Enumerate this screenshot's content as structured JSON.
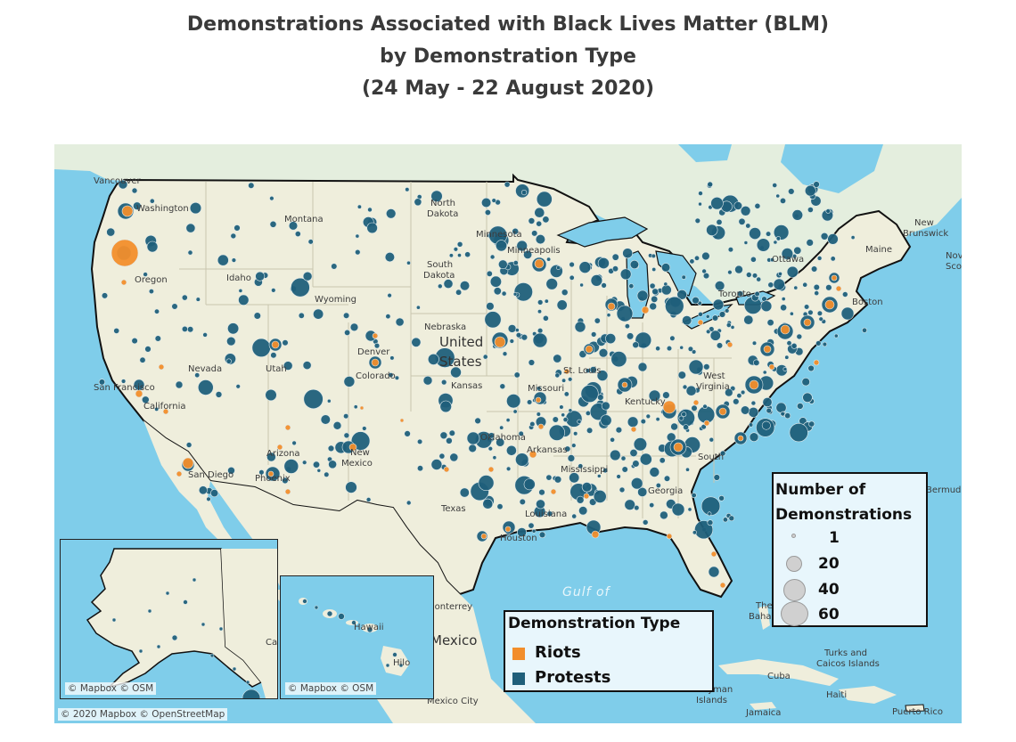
{
  "title": {
    "line1": "Demonstrations Associated with Black Lives Matter (BLM)",
    "line2": "by Demonstration Type",
    "line3": "(24 May - 22 August 2020)"
  },
  "colors": {
    "riots": "#f28e2b",
    "protests": "#1f5f7a",
    "water": "#7fcdea",
    "land": "#efeedc"
  },
  "map": {
    "attribution": "© 2020 Mapbox © OpenStreetMap",
    "inset_alaska_attribution": "© Mapbox © OSM",
    "inset_hawaii_attribution": "© Mapbox © OSM",
    "labels": {
      "vancouver": "Vancouver",
      "washington": "Washington",
      "montana": "Montana",
      "north_dakota_1": "North",
      "north_dakota_2": "Dakota",
      "minnesota": "Minnesota",
      "minneapolis": "Minneapolis",
      "south_dakota_1": "South",
      "south_dakota_2": "Dakota",
      "oregon": "Oregon",
      "idaho": "Idaho",
      "wyoming": "Wyoming",
      "nebraska": "Nebraska",
      "united_states_1": "United",
      "united_states_2": "States",
      "nevada": "Nevada",
      "utah": "Utah",
      "denver": "Denver",
      "colorado": "Colorado",
      "kansas": "Kansas",
      "st_louis": "St. Louis",
      "missouri": "Missouri",
      "san_francisco": "San Francisco",
      "california": "California",
      "arizona": "Arizona",
      "new_mexico_1": "New",
      "new_mexico_2": "Mexico",
      "phoenix": "Phoenix",
      "san_diego": "San Diego",
      "oklahoma": "Oklahoma",
      "arkansas": "Arkansas",
      "mississippi": "Mississippi",
      "texas": "Texas",
      "houston": "Houston",
      "west_virginia_1": "West",
      "west_virginia_2": "Virginia",
      "kentucky": "Kentucky",
      "south_carolina": "South",
      "georgia": "Georgia",
      "louisiana": "Louisiana",
      "toronto": "Toronto",
      "ottawa": "Ottawa",
      "maine": "Maine",
      "new_brunswick_1": "New",
      "new_brunswick_2": "Brunswick",
      "nova_scotia_1": "Nov",
      "nova_scotia_2": "Sco",
      "boston": "Boston",
      "bermuda": "Bermuda",
      "gulf_of": "Gulf of",
      "monterrey": "Monterrey",
      "mexico": "Mexico",
      "mexico_city": "Mexico City",
      "the_bahamas_1": "The",
      "the_bahamas_2": "Bahamas",
      "cuba": "Cuba",
      "turks_1": "Turks and",
      "turks_2": "Caicos Islands",
      "cayman_1": "Cayman",
      "cayman_2": "Islands",
      "haiti": "Haiti",
      "jamaica": "Jamaica",
      "puerto_rico": "Puerto Rico",
      "hawaii": "Hawaii",
      "hilo": "Hilo",
      "canada_ca": "Ca"
    }
  },
  "legend_size": {
    "title_line1": "Number of",
    "title_line2": "Demonstrations",
    "items": [
      {
        "label": "1",
        "value": 1
      },
      {
        "label": "20",
        "value": 20
      },
      {
        "label": "40",
        "value": 40
      },
      {
        "label": "60",
        "value": 60
      }
    ]
  },
  "legend_type": {
    "title": "Demonstration Type",
    "items": [
      {
        "label": "Riots",
        "color": "#f28e2b"
      },
      {
        "label": "Protests",
        "color": "#1f5f7a"
      }
    ]
  }
}
